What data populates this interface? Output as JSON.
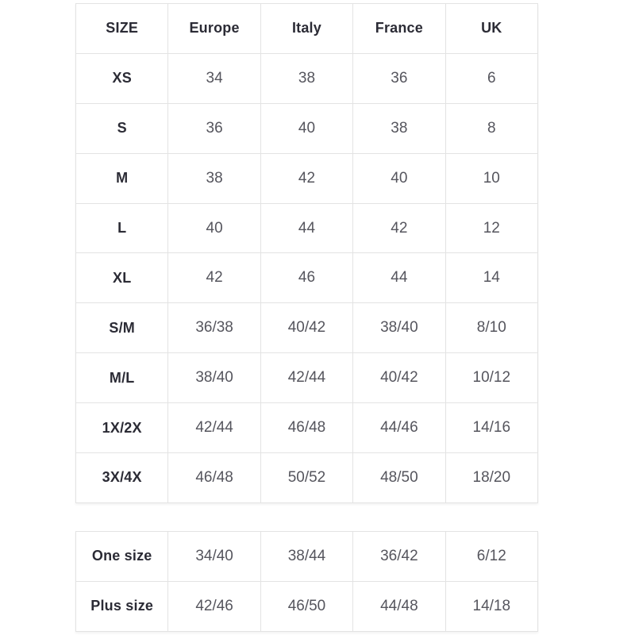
{
  "colors": {
    "border": "#e3e3e3",
    "header_text": "#2b2b35",
    "value_text": "#55555d",
    "background": "#ffffff"
  },
  "size_chart": {
    "headers": [
      "SIZE",
      "Europe",
      "Italy",
      "France",
      "UK"
    ],
    "rows": [
      {
        "label": "XS",
        "values": [
          "34",
          "38",
          "36",
          "6"
        ]
      },
      {
        "label": "S",
        "values": [
          "36",
          "40",
          "38",
          "8"
        ]
      },
      {
        "label": "M",
        "values": [
          "38",
          "42",
          "40",
          "10"
        ]
      },
      {
        "label": "L",
        "values": [
          "40",
          "44",
          "42",
          "12"
        ]
      },
      {
        "label": "XL",
        "values": [
          "42",
          "46",
          "44",
          "14"
        ]
      },
      {
        "label": "S/M",
        "values": [
          "36/38",
          "40/42",
          "38/40",
          "8/10"
        ]
      },
      {
        "label": "M/L",
        "values": [
          "38/40",
          "42/44",
          "40/42",
          "10/12"
        ]
      },
      {
        "label": "1X/2X",
        "values": [
          "42/44",
          "46/48",
          "44/46",
          "14/16"
        ]
      },
      {
        "label": "3X/4X",
        "values": [
          "46/48",
          "50/52",
          "48/50",
          "18/20"
        ]
      }
    ]
  },
  "special_sizes": {
    "rows": [
      {
        "label": "One size",
        "values": [
          "34/40",
          "38/44",
          "36/42",
          "6/12"
        ]
      },
      {
        "label": "Plus size",
        "values": [
          "42/46",
          "46/50",
          "44/48",
          "14/18"
        ]
      }
    ]
  },
  "chart_data": [
    {
      "type": "table",
      "columns": [
        "SIZE",
        "Europe",
        "Italy",
        "France",
        "UK"
      ],
      "rows": [
        [
          "XS",
          "34",
          "38",
          "36",
          "6"
        ],
        [
          "S",
          "36",
          "40",
          "38",
          "8"
        ],
        [
          "M",
          "38",
          "42",
          "40",
          "10"
        ],
        [
          "L",
          "40",
          "44",
          "42",
          "12"
        ],
        [
          "XL",
          "42",
          "46",
          "44",
          "14"
        ],
        [
          "S/M",
          "36/38",
          "40/42",
          "38/40",
          "8/10"
        ],
        [
          "M/L",
          "38/40",
          "42/44",
          "40/42",
          "10/12"
        ],
        [
          "1X/2X",
          "42/44",
          "46/48",
          "44/46",
          "14/16"
        ],
        [
          "3X/4X",
          "46/48",
          "50/52",
          "48/50",
          "18/20"
        ]
      ]
    },
    {
      "type": "table",
      "columns": [
        "SIZE",
        "Europe",
        "Italy",
        "France",
        "UK"
      ],
      "rows": [
        [
          "One size",
          "34/40",
          "38/44",
          "36/42",
          "6/12"
        ],
        [
          "Plus size",
          "42/46",
          "46/50",
          "44/48",
          "14/18"
        ]
      ]
    }
  ]
}
